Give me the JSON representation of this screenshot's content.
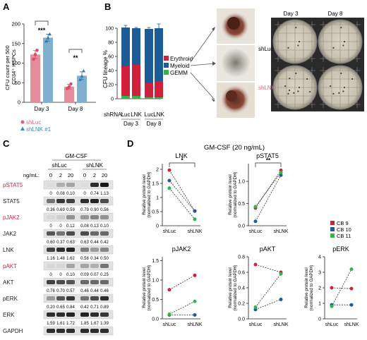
{
  "panels": {
    "A": {
      "letter": "A",
      "ylabel_line1": "CFU count per 500",
      "ylabel_line2": "CD34⁺ HSPCs",
      "sig_day3": "***",
      "sig_day8": "**",
      "legend": [
        {
          "label": "shLuc",
          "marker": "circle",
          "color": "#e0607a"
        },
        {
          "label": "shLNK #1",
          "marker": "triangle",
          "color": "#3f87b8"
        }
      ]
    },
    "B": {
      "letter": "B",
      "ylabel": "CFU lineage %",
      "shrna_label": "shRNA:",
      "legend": [
        {
          "label": "Erythroid",
          "color": "#d21f3c"
        },
        {
          "label": "Myeloid",
          "color": "#1d5c96"
        },
        {
          "label": "GEMM",
          "color": "#33b54a"
        }
      ],
      "photo_labels": {
        "day3": "Day 3",
        "day8": "Day 8",
        "shluc": "shLuc",
        "shlnk": "shLNK"
      }
    },
    "C": {
      "letter": "C",
      "treatment": "GM-CSF",
      "conc_label": "ng/mL:",
      "groups": [
        "shLuc",
        "shLNK"
      ],
      "concs": [
        "0",
        "2",
        "20",
        "0",
        "2",
        "20"
      ],
      "blots": [
        {
          "label": "pSTAT5",
          "red": true,
          "values": [
            "0",
            "0.08",
            "0.10",
            "0",
            "0.74",
            "1.13"
          ]
        },
        {
          "label": "STAT5",
          "red": false,
          "values": [
            "0.36",
            "0.69",
            "0.59",
            "0.79",
            "0.90",
            "0.56"
          ]
        },
        {
          "label": "pJAK2",
          "red": true,
          "values": [
            "0",
            "0",
            "0.12",
            "0.08",
            "0.13",
            "0.10"
          ]
        },
        {
          "label": "JAK2",
          "red": false,
          "values": [
            "0.60",
            "0.37",
            "0.63",
            "0.63",
            "0.44",
            "0.42"
          ]
        },
        {
          "label": "LNK",
          "red": false,
          "values": [
            "1.16",
            "1.48",
            "1.62",
            "0.58",
            "0.34",
            "0.50"
          ]
        },
        {
          "label": "pAKT",
          "red": true,
          "values": [
            "0",
            "0",
            "0.10",
            "0.09",
            "0.07",
            "0.25"
          ]
        },
        {
          "label": "AKT",
          "red": false,
          "values": [
            "0.76",
            "0.70",
            "0.57",
            "0.46",
            "0.44",
            "0.46"
          ]
        },
        {
          "label": "pERK",
          "red": false,
          "values": [
            "0.20",
            "0.65",
            "0.84",
            "0.42",
            "0.71",
            "0.89"
          ]
        },
        {
          "label": "ERK",
          "red": false,
          "values": [
            "1.59",
            "1.61",
            "1.72",
            "1.85",
            "1.67",
            "1.39"
          ]
        },
        {
          "label": "GAPDH",
          "red": false,
          "values": []
        }
      ]
    },
    "D": {
      "letter": "D",
      "title": "GM-CSF (20 ng/mL)",
      "ylabel_line1": "Relative protein level",
      "ylabel_line2": "(normalized to GAPDH)",
      "legend": [
        {
          "label": "CB 9",
          "color": "#d21f3c"
        },
        {
          "label": "CB 10",
          "color": "#1d5c96"
        },
        {
          "label": "CB 11",
          "color": "#33b54a"
        }
      ]
    }
  },
  "chart_data": [
    {
      "id": "A",
      "type": "bar",
      "categories": [
        "Day 3",
        "Day 8"
      ],
      "ylabel": "CFU count per 500 CD34⁺ HSPCs",
      "ylim": [
        0,
        200
      ],
      "yticks": [
        0,
        50,
        100,
        150,
        200
      ],
      "series": [
        {
          "name": "shLuc",
          "values": [
            122,
            40
          ],
          "errors": [
            10,
            6
          ],
          "points": [
            [
              110,
              122,
              133
            ],
            [
              35,
              40,
              47
            ]
          ],
          "color": "#e58d9c",
          "point_color": "#d94a63"
        },
        {
          "name": "shLNK #1",
          "values": [
            165,
            68
          ],
          "errors": [
            9,
            10
          ],
          "points": [
            [
              156,
              165,
              174
            ],
            [
              58,
              67,
              80
            ]
          ],
          "color": "#7fb0d2",
          "point_color": "#2f77aa"
        }
      ],
      "significance": [
        "***",
        "**"
      ]
    },
    {
      "id": "B",
      "type": "bar",
      "stacked": true,
      "categories": [
        "Luc",
        "LNK",
        "Luc",
        "LNK"
      ],
      "groups": [
        "Day 3",
        "Day 3",
        "Day 8",
        "Day 8"
      ],
      "ylabel": "CFU lineage %",
      "ylim": [
        0,
        100
      ],
      "yticks": [
        0,
        20,
        40,
        60,
        80,
        100
      ],
      "series": [
        {
          "name": "GEMM",
          "values": [
            4,
            4,
            2,
            2
          ],
          "color": "#33b54a"
        },
        {
          "name": "Erythroid",
          "values": [
            42,
            44,
            20,
            23
          ],
          "color": "#d21f3c"
        },
        {
          "name": "Myeloid",
          "values": [
            55,
            52,
            77,
            75
          ],
          "color": "#1d5c96"
        }
      ],
      "totals_error": [
        3,
        1,
        2,
        6
      ]
    },
    {
      "id": "D-LNK",
      "type": "line",
      "title": "LNK",
      "categories": [
        "shLuc",
        "shLNK"
      ],
      "ylim": [
        0,
        2.2
      ],
      "yticks": [
        0,
        0.5,
        1.0,
        1.5,
        2.0
      ],
      "significance": "*",
      "series": [
        {
          "name": "CB 9",
          "values": [
            1.97,
            0.52
          ],
          "color": "#d21f3c"
        },
        {
          "name": "CB 10",
          "values": [
            1.6,
            0.52
          ],
          "color": "#1d5c96"
        },
        {
          "name": "CB 11",
          "values": [
            1.33,
            0.23
          ],
          "color": "#33b54a"
        }
      ]
    },
    {
      "id": "D-pSTAT5",
      "type": "line",
      "title": "pSTAT5",
      "categories": [
        "shLuc",
        "shLNK"
      ],
      "ylim": [
        0,
        1.4
      ],
      "yticks": [
        0,
        0.5,
        1.0
      ],
      "significance": "**",
      "series": [
        {
          "name": "CB 9",
          "values": [
            0.4,
            1.25
          ],
          "color": "#d21f3c"
        },
        {
          "name": "CB 10",
          "values": [
            0.1,
            1.14
          ],
          "color": "#1d5c96"
        },
        {
          "name": "CB 11",
          "values": [
            0.43,
            1.2
          ],
          "color": "#33b54a"
        }
      ]
    },
    {
      "id": "D-pJAK2",
      "type": "line",
      "title": "pJAK2",
      "categories": [
        "shLuc",
        "shLNK"
      ],
      "ylim": [
        0,
        1.6
      ],
      "yticks": [
        0,
        0.5,
        1.0,
        1.5
      ],
      "series": [
        {
          "name": "CB 9",
          "values": [
            0.75,
            1.12
          ],
          "color": "#d21f3c"
        },
        {
          "name": "CB 10",
          "values": [
            0.1,
            0.1
          ],
          "color": "#1d5c96"
        },
        {
          "name": "CB 11",
          "values": [
            0.12,
            0.45
          ],
          "color": "#33b54a"
        }
      ]
    },
    {
      "id": "D-pAKT",
      "type": "line",
      "title": "pAKT",
      "categories": [
        "shLuc",
        "shLNK"
      ],
      "ylim": [
        0,
        0.8
      ],
      "yticks": [
        0,
        0.2,
        0.4,
        0.6,
        0.8
      ],
      "series": [
        {
          "name": "CB 9",
          "values": [
            0.7,
            0.6
          ],
          "color": "#d21f3c"
        },
        {
          "name": "CB 10",
          "values": [
            0.12,
            0.25
          ],
          "color": "#1d5c96"
        },
        {
          "name": "CB 11",
          "values": [
            0.15,
            0.58
          ],
          "color": "#33b54a"
        }
      ]
    },
    {
      "id": "D-pERK",
      "type": "line",
      "title": "pERK",
      "categories": [
        "shLuc",
        "shLNK"
      ],
      "ylim": [
        0,
        4
      ],
      "yticks": [
        0,
        1,
        2,
        3,
        4
      ],
      "series": [
        {
          "name": "CB 9",
          "values": [
            2.0,
            1.95
          ],
          "color": "#d21f3c"
        },
        {
          "name": "CB 10",
          "values": [
            0.9,
            0.9
          ],
          "color": "#1d5c96"
        },
        {
          "name": "CB 11",
          "values": [
            0.8,
            3.2
          ],
          "color": "#33b54a"
        }
      ]
    }
  ]
}
